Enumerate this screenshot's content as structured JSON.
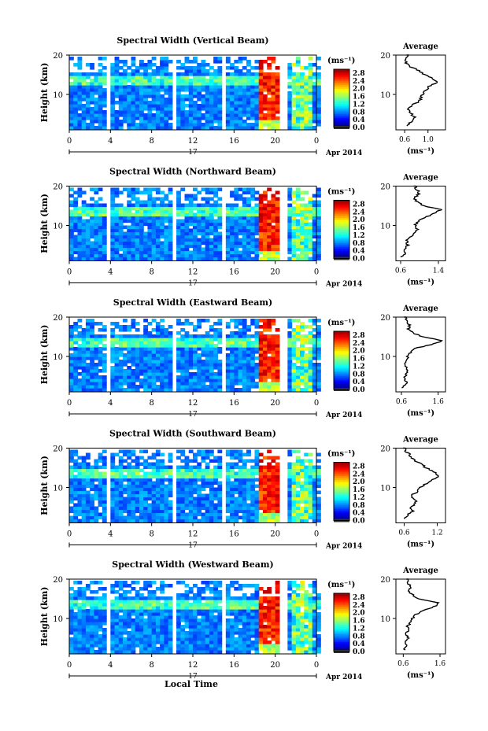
{
  "figure": {
    "date_label": "Apr 2014",
    "day_label": "17",
    "xaxis_label": "Local Time",
    "colorbar_unit": "(ms⁻¹)",
    "avg_title": "Average",
    "avg_unit": "(ms⁻¹)"
  },
  "chart_data": [
    {
      "type": "heatmap",
      "title": "Spectral Width (Vertical Beam)",
      "ylabel": "Height (km)",
      "xlabel": "Local Time",
      "xticks": [
        "0",
        "4",
        "8",
        "12",
        "16",
        "20",
        "0"
      ],
      "xlim": [
        0,
        24
      ],
      "yticks": [
        "10",
        "20"
      ],
      "ylim": [
        1,
        20
      ],
      "colorbar": {
        "ticks": [
          "0.0",
          "0.4",
          "0.8",
          "1.2",
          "1.6",
          "2.0",
          "2.4",
          "2.8"
        ],
        "range": [
          0.0,
          3.0
        ]
      },
      "average_profile": {
        "title": "Average",
        "xticks": [
          "0.6",
          "1.0"
        ],
        "xlim": [
          0.45,
          1.3
        ],
        "height": [
          2,
          3,
          4,
          5,
          6,
          7,
          8,
          9,
          10,
          11,
          12,
          13,
          14,
          15,
          16,
          17,
          18,
          19,
          20
        ],
        "value": [
          0.62,
          0.7,
          0.78,
          0.72,
          0.66,
          0.7,
          0.82,
          0.88,
          0.9,
          0.96,
          1.02,
          1.15,
          1.08,
          0.95,
          0.85,
          0.7,
          0.62,
          0.6,
          0.65
        ]
      }
    },
    {
      "type": "heatmap",
      "title": "Spectral Width (Northward Beam)",
      "ylabel": "Height (km)",
      "xlabel": "Local Time",
      "xticks": [
        "0",
        "4",
        "8",
        "12",
        "16",
        "20",
        "0"
      ],
      "xlim": [
        0,
        24
      ],
      "yticks": [
        "10",
        "20"
      ],
      "ylim": [
        1,
        20
      ],
      "colorbar": {
        "ticks": [
          "0.0",
          "0.4",
          "0.8",
          "1.2",
          "1.6",
          "2.0",
          "2.4",
          "2.8"
        ],
        "range": [
          0.0,
          3.0
        ]
      },
      "average_profile": {
        "title": "Average",
        "xticks": [
          "0.6",
          "1.4"
        ],
        "xlim": [
          0.5,
          1.55
        ],
        "height": [
          2,
          3,
          4,
          5,
          6,
          7,
          8,
          9,
          10,
          11,
          12,
          13,
          14,
          15,
          16,
          17,
          18,
          19,
          20
        ],
        "value": [
          0.62,
          0.7,
          0.68,
          0.75,
          0.72,
          0.8,
          0.9,
          0.95,
          0.9,
          0.98,
          1.1,
          1.3,
          1.45,
          1.1,
          0.95,
          0.88,
          1.0,
          0.95,
          0.9
        ]
      }
    },
    {
      "type": "heatmap",
      "title": "Spectral Width (Eastward Beam)",
      "ylabel": "Height (km)",
      "xlabel": "Local Time",
      "xticks": [
        "0",
        "4",
        "8",
        "12",
        "16",
        "20",
        "0"
      ],
      "xlim": [
        0,
        24
      ],
      "yticks": [
        "10",
        "20"
      ],
      "ylim": [
        1,
        20
      ],
      "colorbar": {
        "ticks": [
          "0.0",
          "0.4",
          "0.8",
          "1.2",
          "1.6",
          "2.0",
          "2.4",
          "2.8"
        ],
        "range": [
          0.0,
          3.0
        ]
      },
      "average_profile": {
        "title": "Average",
        "xticks": [
          "0.6",
          "1.6"
        ],
        "xlim": [
          0.45,
          1.8
        ],
        "height": [
          2,
          3,
          4,
          5,
          6,
          7,
          8,
          9,
          10,
          11,
          12,
          13,
          14,
          15,
          16,
          17,
          18,
          19,
          20
        ],
        "value": [
          0.62,
          0.75,
          0.7,
          0.68,
          0.8,
          0.72,
          0.7,
          0.72,
          0.78,
          0.85,
          0.95,
          1.4,
          1.7,
          1.2,
          0.9,
          0.78,
          0.82,
          0.75,
          0.7
        ]
      }
    },
    {
      "type": "heatmap",
      "title": "Spectral Width (Southward Beam)",
      "ylabel": "Height (km)",
      "xlabel": "Local Time",
      "xticks": [
        "0",
        "4",
        "8",
        "12",
        "16",
        "20",
        "0"
      ],
      "xlim": [
        0,
        24
      ],
      "yticks": [
        "10",
        "20"
      ],
      "ylim": [
        1,
        20
      ],
      "colorbar": {
        "ticks": [
          "0.0",
          "0.4",
          "0.8",
          "1.2",
          "1.6",
          "2.0",
          "2.4",
          "2.8"
        ],
        "range": [
          0.0,
          3.0
        ]
      },
      "average_profile": {
        "title": "Average",
        "xticks": [
          "0.6",
          "1.2"
        ],
        "xlim": [
          0.45,
          1.35
        ],
        "height": [
          2,
          3,
          4,
          5,
          6,
          7,
          8,
          9,
          10,
          11,
          12,
          13,
          14,
          15,
          16,
          17,
          18,
          19,
          20
        ],
        "value": [
          0.6,
          0.66,
          0.75,
          0.7,
          0.82,
          0.8,
          0.72,
          0.85,
          0.9,
          1.0,
          1.12,
          1.22,
          1.15,
          1.0,
          0.9,
          0.78,
          0.72,
          0.65,
          0.6
        ]
      }
    },
    {
      "type": "heatmap",
      "title": "Spectral Width (Westward Beam)",
      "ylabel": "Height (km)",
      "xlabel": "Local Time",
      "xticks": [
        "0",
        "4",
        "8",
        "12",
        "16",
        "20",
        "0"
      ],
      "xlim": [
        0,
        24
      ],
      "yticks": [
        "10",
        "20"
      ],
      "ylim": [
        1,
        20
      ],
      "colorbar": {
        "ticks": [
          "0.0",
          "0.4",
          "0.8",
          "1.2",
          "1.6",
          "2.0",
          "2.4",
          "2.8"
        ],
        "range": [
          0.0,
          3.0
        ]
      },
      "average_profile": {
        "title": "Average",
        "xticks": [
          "0.6",
          "1.6"
        ],
        "xlim": [
          0.4,
          1.75
        ],
        "height": [
          2,
          3,
          4,
          5,
          6,
          7,
          8,
          9,
          10,
          11,
          12,
          13,
          14,
          15,
          16,
          17,
          18,
          19,
          20
        ],
        "value": [
          0.62,
          0.7,
          0.65,
          0.72,
          0.68,
          0.75,
          0.72,
          0.8,
          0.85,
          0.95,
          1.1,
          1.45,
          1.55,
          1.05,
          0.85,
          0.75,
          0.82,
          0.72,
          0.7
        ]
      }
    }
  ]
}
